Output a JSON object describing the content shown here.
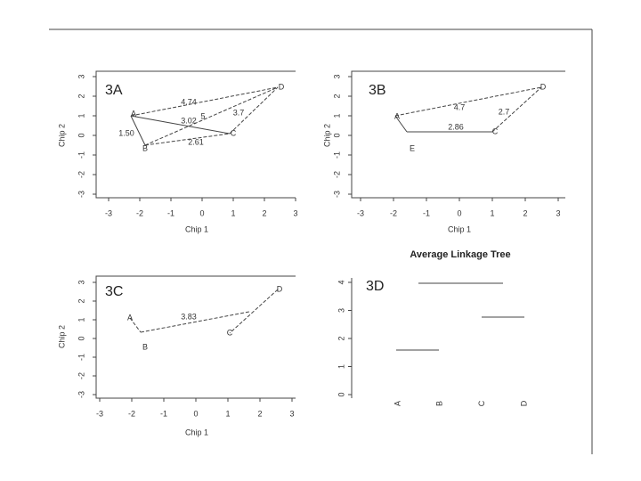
{
  "panels": [
    {
      "label": "3A",
      "x_label": "Chip 1",
      "y_label": "Chip 2",
      "x_ticks": [
        "-3",
        "-2",
        "-1",
        "0",
        "1",
        "2",
        "3"
      ],
      "y_ticks": [
        "-3",
        "-2",
        "-1",
        "0",
        "1",
        "2",
        "3"
      ],
      "points": [
        "A",
        "B",
        "C",
        "D"
      ],
      "edge_labels": [
        "4.74",
        "3.02",
        "5",
        "3.7",
        "1.50",
        "2.61"
      ]
    },
    {
      "label": "3B",
      "x_label": "Chip 1",
      "y_label": "Chip 2",
      "x_ticks": [
        "-3",
        "-2",
        "-1",
        "0",
        "1",
        "2",
        "3"
      ],
      "y_ticks": [
        "-3",
        "-2",
        "-1",
        "0",
        "1",
        "2",
        "3"
      ],
      "points": [
        "A",
        "E",
        "C",
        "D"
      ],
      "edge_labels": [
        "4.7",
        "2.7",
        "2.86"
      ]
    },
    {
      "label": "3C",
      "x_label": "Chip 1",
      "y_label": "Chip 2",
      "x_ticks": [
        "-3",
        "-2",
        "-1",
        "0",
        "1",
        "2",
        "3"
      ],
      "y_ticks": [
        "-3",
        "-2",
        "-1",
        "0",
        "1",
        "2",
        "3"
      ],
      "points": [
        "A",
        "B",
        "C",
        "D"
      ],
      "edge_labels": [
        "3.83"
      ]
    }
  ],
  "tree": {
    "label": "3D",
    "title": "Average Linkage Tree",
    "y_ticks": [
      "0",
      "1",
      "2",
      "3",
      "4"
    ],
    "leaves": [
      "A",
      "B",
      "C",
      "D"
    ]
  }
}
